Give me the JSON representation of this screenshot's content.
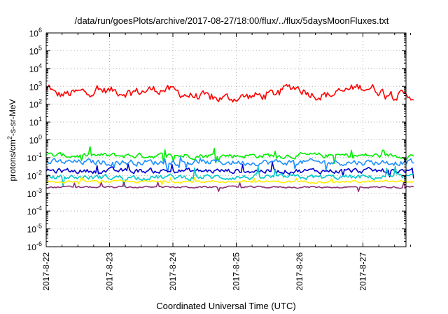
{
  "chart_data": {
    "type": "line",
    "title": "/data/run/goesPlots/archive/2017-08-27/18:00/flux/../flux/5daysMoonFluxes.txt",
    "xlabel": "Coordinated Universal Time (UTC)",
    "ylabel": "protons/cm2-s-sr-MeV",
    "ylabel_parts": {
      "pre": "protons/cm",
      "sup": "2",
      "post": "-s-sr-MeV"
    },
    "x_tick_labels": [
      "2017-8-22",
      "2017-8-23",
      "2017-8-24",
      "2017-8-25",
      "2017-8-26",
      "2017-8-27"
    ],
    "xlim_days": [
      0,
      5.8
    ],
    "y_scale": "log",
    "ylim": [
      1e-06,
      1000000.0
    ],
    "y_tick_exponents": [
      6,
      5,
      4,
      3,
      2,
      1,
      0,
      -1,
      -2,
      -3,
      -4,
      -5,
      -6
    ],
    "y_tick_base": "10",
    "grid": true,
    "series": [
      {
        "color": "#ff0000",
        "level": 300,
        "noise": 0.22,
        "spike": 0.15,
        "bumps": [
          [
            0.05,
            0.45,
            0.06
          ],
          [
            0.9,
            0.3,
            0.5
          ],
          [
            1.8,
            0.35,
            0.35
          ],
          [
            2.75,
            -0.15,
            0.4
          ],
          [
            3.9,
            0.5,
            0.25
          ],
          [
            5.0,
            0.5,
            0.35
          ]
        ]
      },
      {
        "color": "#00ee00",
        "level": 0.13,
        "noise": 0.12,
        "spike": 0.35,
        "bumps": []
      },
      {
        "color": "#1e90ff",
        "level": 0.055,
        "noise": 0.14,
        "spike": 0.35,
        "bumps": []
      },
      {
        "color": "#0000cd",
        "level": 0.018,
        "noise": 0.12,
        "spike": 0.4,
        "bumps": []
      },
      {
        "color": "#00c8c8",
        "level": 0.008,
        "noise": 0.12,
        "spike": 0.45,
        "bumps": []
      },
      {
        "color": "#ffee00",
        "level": 0.0045,
        "noise": 0.05,
        "spike": 0.2,
        "bumps": []
      },
      {
        "color": "#8b2f7a",
        "level": 0.0022,
        "noise": 0.04,
        "spike": 0.25,
        "bumps": []
      }
    ]
  }
}
